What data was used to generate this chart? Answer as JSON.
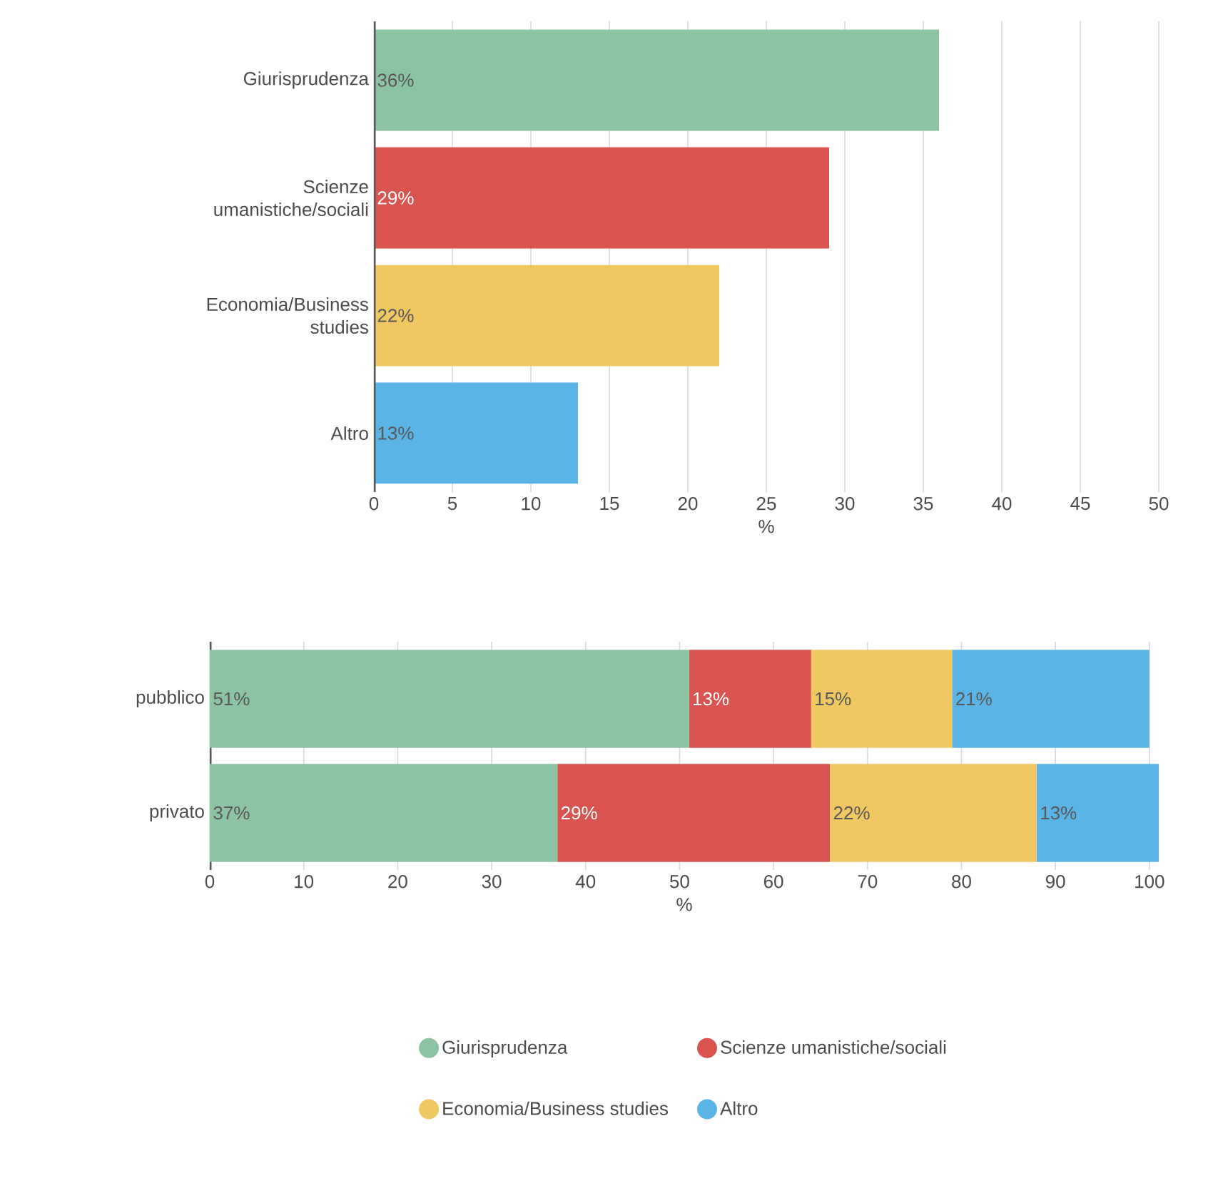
{
  "chart_data": [
    {
      "type": "bar",
      "orientation": "horizontal",
      "categories": [
        "Giurisprudenza",
        "Scienze umanistiche/sociali",
        "Economia/Business studies",
        "Altro"
      ],
      "values": [
        36,
        29,
        22,
        13
      ],
      "colors": [
        "#8cc4a3",
        "#d9534f",
        "#f0c862",
        "#5ab4e5"
      ],
      "value_labels": [
        "36%",
        "29%",
        "22%",
        "13%"
      ],
      "xlabel": "%",
      "xlim": [
        0,
        50
      ],
      "xticks": [
        0,
        5,
        10,
        15,
        20,
        25,
        30,
        35,
        40,
        45,
        50
      ],
      "grid": "x"
    },
    {
      "type": "bar",
      "orientation": "horizontal",
      "stacked": true,
      "categories": [
        "pubblico",
        "privato"
      ],
      "series": [
        {
          "name": "Giurisprudenza",
          "color": "#8cc4a3",
          "values": [
            51,
            37
          ],
          "value_labels": [
            "51%",
            "37%"
          ]
        },
        {
          "name": "Scienze umanistiche/sociali",
          "color": "#d9534f",
          "values": [
            13,
            29
          ],
          "value_labels": [
            "13%",
            "29%"
          ]
        },
        {
          "name": "Economia/Business studies",
          "color": "#f0c862",
          "values": [
            15,
            22
          ],
          "value_labels": [
            "15%",
            "22%"
          ]
        },
        {
          "name": "Altro",
          "color": "#5ab4e5",
          "values": [
            21,
            13
          ],
          "value_labels": [
            "21%",
            "13%"
          ]
        }
      ],
      "xlabel": "%",
      "xlim": [
        0,
        101
      ],
      "xticks": [
        0,
        10,
        20,
        30,
        40,
        50,
        60,
        70,
        80,
        90,
        100
      ],
      "grid": "x",
      "legend": "bottom"
    }
  ]
}
